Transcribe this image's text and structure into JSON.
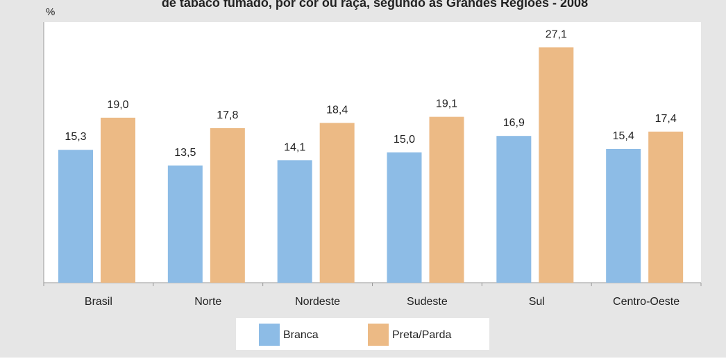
{
  "chart_data": {
    "type": "bar",
    "title": "de tabaco fumado, por cor ou raça, segundo as Grandes Regiões - 2008",
    "y_label": "%",
    "categories": [
      "Brasil",
      "Norte",
      "Nordeste",
      "Sudeste",
      "Sul",
      "Centro-Oeste"
    ],
    "series": [
      {
        "name": "Branca",
        "color": "#8dbce6",
        "values": [
          15.3,
          13.5,
          14.1,
          15.0,
          16.9,
          15.4
        ],
        "value_labels": [
          "15,3",
          "13,5",
          "14,1",
          "15,0",
          "16,9",
          "15,4"
        ]
      },
      {
        "name": "Preta/Parda",
        "color": "#ecba85",
        "values": [
          19.0,
          17.8,
          18.4,
          19.1,
          27.1,
          17.4
        ],
        "value_labels": [
          "19,0",
          "17,8",
          "18,4",
          "19,1",
          "27,1",
          "17,4"
        ]
      }
    ],
    "ylim": [
      0,
      30
    ],
    "legend": "bottom"
  }
}
